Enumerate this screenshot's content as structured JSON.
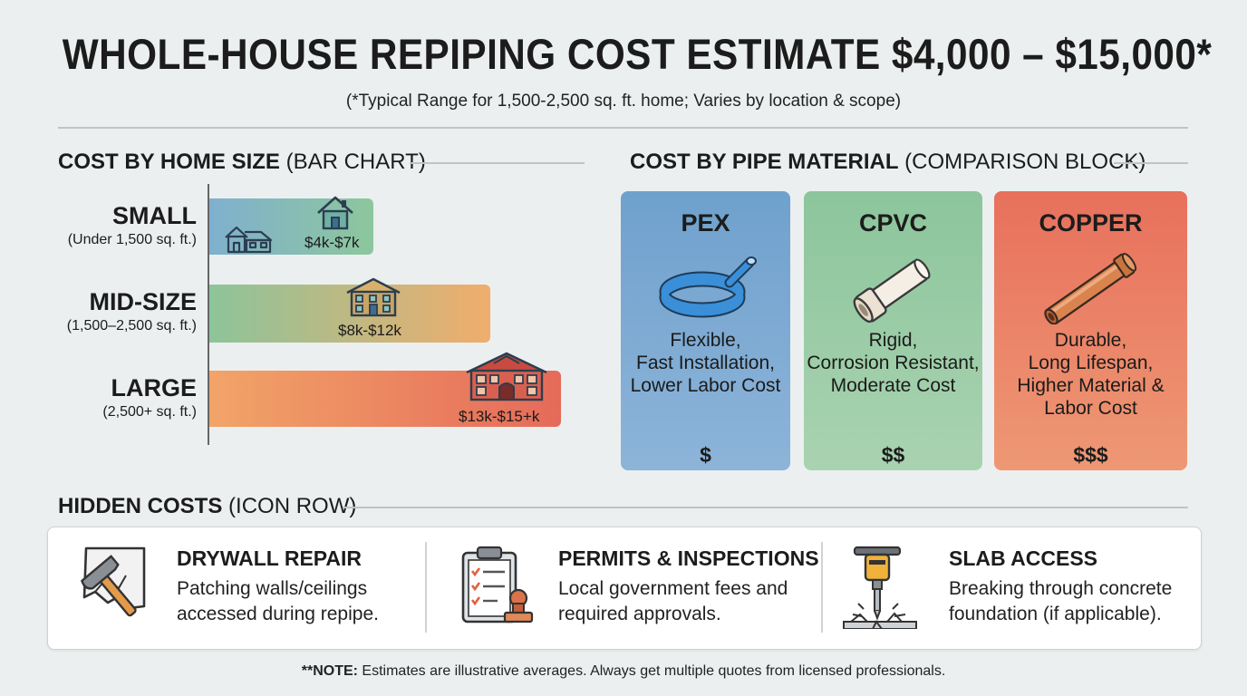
{
  "title": "WHOLE-HOUSE REPIPING COST ESTIMATE $4,000 – $15,000*",
  "subtitle": "(*Typical Range for 1,500-2,500 sq. ft. home; Varies by location & scope)",
  "home_size_section": {
    "heading_bold": "COST BY HOME SIZE",
    "heading_paren": "(BAR CHART)"
  },
  "material_section": {
    "heading_bold": "COST BY PIPE MATERIAL",
    "heading_paren": "(COMPARISON BLOCK)"
  },
  "chart_data": {
    "type": "bar",
    "orientation": "horizontal",
    "categories": [
      "SMALL",
      "MID-SIZE",
      "LARGE"
    ],
    "category_subtitles": [
      "(Under 1,500 sq. ft.)",
      "(1,500–2,500 sq. ft.)",
      "(2,500+ sq. ft.)"
    ],
    "value_labels": [
      "$4k-$7k",
      "$8k-$12k",
      "$13k-$15+k"
    ],
    "ranges": [
      [
        4,
        7
      ],
      [
        8,
        12
      ],
      [
        13,
        15
      ]
    ],
    "values": [
      7,
      12,
      15
    ],
    "units": "thousands USD",
    "xlim": [
      0,
      15.7
    ],
    "grid": false,
    "bar_colors": [
      [
        "#7fb0cf",
        "#8dc79c"
      ],
      [
        "#8dc49a",
        "#f0ad6c"
      ],
      [
        "#f2a468",
        "#e56a5a"
      ]
    ],
    "icons": [
      "house-icon",
      "two-story-house-icon",
      "large-house-icon"
    ]
  },
  "materials": [
    {
      "name": "PEX",
      "desc": [
        "Flexible,",
        "Fast Installation,",
        "Lower Labor Cost"
      ],
      "price": "$",
      "icon": "coiled-pex-pipe-icon",
      "color_top": "#6fa1cd",
      "color_bottom": "#8db4d9"
    },
    {
      "name": "CPVC",
      "desc": [
        "Rigid,",
        "Corrosion Resistant,",
        "Moderate Cost"
      ],
      "price": "$$",
      "icon": "cpvc-pipe-icon",
      "color_top": "#8cc59c",
      "color_bottom": "#a9d3b0"
    },
    {
      "name": "COPPER",
      "desc": [
        "Durable,",
        "Long Lifespan,",
        "Higher Material &",
        "Labor Cost"
      ],
      "price": "$$$",
      "icon": "copper-pipe-icon",
      "color_top": "#e8705c",
      "color_bottom": "#ee9874"
    }
  ],
  "hidden_costs": {
    "heading_bold": "HIDDEN COSTS",
    "heading_paren": "(ICON ROW)",
    "items": [
      {
        "title": "DRYWALL REPAIR",
        "desc": [
          "Patching walls/ceilings",
          "accessed during repipe."
        ],
        "icon": "hammer-drywall-icon"
      },
      {
        "title": "PERMITS & INSPECTIONS",
        "desc": [
          "Local government fees and",
          "required approvals."
        ],
        "icon": "clipboard-stamp-icon"
      },
      {
        "title": "SLAB ACCESS",
        "desc": [
          "Breaking through concrete",
          "foundation (if applicable)."
        ],
        "icon": "jackhammer-icon"
      }
    ]
  },
  "note": {
    "bold": "**NOTE:",
    "text": " Estimates are illustrative averages. Always get multiple quotes from licensed professionals."
  }
}
